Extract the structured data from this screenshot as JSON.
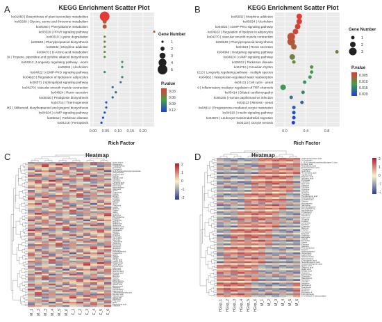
{
  "panels": {
    "A": {
      "letter": "A",
      "title": "KEGG Enrichment Scatter Plot",
      "xlabel": "Rich Factor",
      "size_legend": {
        "title": "Gene Number",
        "values": [
          1,
          2,
          3,
          4,
          5
        ]
      },
      "color_legend": {
        "title": "P.value",
        "ticks": [
          "0.03",
          "0.06",
          "0.09",
          "0.12"
        ],
        "low": "#e53935",
        "mid": "#43a047",
        "high": "#1e3fd6"
      },
      "x_ticks": [
        "0.00",
        "0.05",
        "0.10",
        "0.15",
        "0.20"
      ],
      "chart_data": {
        "type": "scatter",
        "title": "KEGG Enrichment Scatter Plot",
        "xlabel": "Rich Factor",
        "xlim": [
          0.0,
          0.2
        ],
        "points": [
          {
            "pathway": "ko01060 | Biosynthesis of plant secondary metabolites",
            "rich": 0.045,
            "genes": 5,
            "p": 0.004
          },
          {
            "pathway": "ko00260 | Glycine, serine and threonine metabolism",
            "rich": 0.045,
            "genes": 2,
            "p": 0.02
          },
          {
            "pathway": "ko00360 | Phenylalanine metabolism",
            "rich": 0.045,
            "genes": 2,
            "p": 0.02
          },
          {
            "pathway": "ko03320 | PPAR signaling pathway",
            "rich": 0.2,
            "genes": 1,
            "p": 0.03
          },
          {
            "pathway": "ko00310 | Lysine degradation",
            "rich": 0.045,
            "genes": 1,
            "p": 0.04
          },
          {
            "pathway": "ko00940 | Phenylpropanoid biosynthesis",
            "rich": 0.045,
            "genes": 1,
            "p": 0.045
          },
          {
            "pathway": "ko05032 | Morphine addiction",
            "rich": 0.045,
            "genes": 1,
            "p": 0.05
          },
          {
            "pathway": "ko00470 | D-Amino acid metabolism",
            "rich": 0.045,
            "genes": 1,
            "p": 0.055
          },
          {
            "pathway": "ko00960 | Tropane, piperidine and pyridine alkaloid biosynthesis",
            "rich": 0.045,
            "genes": 1,
            "p": 0.06
          },
          {
            "pathway": "ko04212 | Longevity regulating pathway - worm",
            "rich": 0.1,
            "genes": 1,
            "p": 0.065
          },
          {
            "pathway": "ko05034 | Alcoholism",
            "rich": 0.1,
            "genes": 1,
            "p": 0.07
          },
          {
            "pathway": "ko04022 | cGMP-PKG signaling pathway",
            "rich": 0.045,
            "genes": 1,
            "p": 0.075
          },
          {
            "pathway": "ko04923 | Regulation of lipolysis in adipocytes",
            "rich": 0.1,
            "genes": 1,
            "p": 0.08
          },
          {
            "pathway": "ko04071 | Sphingolipid signaling pathway",
            "rich": 0.095,
            "genes": 1,
            "p": 0.085
          },
          {
            "pathway": "ko04270 | Vascular smooth muscle contraction",
            "rich": 0.07,
            "genes": 1,
            "p": 0.09
          },
          {
            "pathway": "ko04924 | Renin secretion",
            "rich": 0.08,
            "genes": 1,
            "p": 0.095
          },
          {
            "pathway": "ko00330 | Prodigiosin biosynthesis",
            "rich": 0.07,
            "genes": 1,
            "p": 0.1
          },
          {
            "pathway": "ko04714 | Thermogenesis",
            "rich": 0.05,
            "genes": 1,
            "p": 0.105
          },
          {
            "pathway": "ko00945 | Stilbenoid, diarylheptanoid and gingerol biosynthesis",
            "rich": 0.05,
            "genes": 1,
            "p": 0.11
          },
          {
            "pathway": "ko04024 | cAMP signaling pathway",
            "rich": 0.045,
            "genes": 1,
            "p": 0.115
          },
          {
            "pathway": "ko05012 | Parkinson disease",
            "rich": 0.04,
            "genes": 1,
            "p": 0.118
          },
          {
            "pathway": "ko04216 | Ferroptosis",
            "rich": 0.035,
            "genes": 1,
            "p": 0.12
          }
        ]
      }
    },
    "B": {
      "letter": "B",
      "title": "KEGG Enrichment Scatter Plot",
      "xlabel": "Rich Factor",
      "size_legend": {
        "title": "Gene Number",
        "values": [
          1,
          2,
          3
        ]
      },
      "color_legend": {
        "title": "P.value",
        "ticks": [
          "0.005",
          "0.010",
          "0.015",
          "0.020"
        ],
        "low": "#e53935",
        "mid": "#43a047",
        "high": "#1e3fd6"
      },
      "x_ticks": [
        "0.0",
        "0.4",
        "0.8"
      ],
      "chart_data": {
        "type": "scatter",
        "title": "KEGG Enrichment Scatter Plot",
        "xlabel": "Rich Factor",
        "xlim": [
          -0.2,
          1.0
        ],
        "points": [
          {
            "pathway": "ko05032 | Morphine addiction",
            "rich": 0.25,
            "genes": 2,
            "p": 0.001
          },
          {
            "pathway": "ko05034 | Alcoholism",
            "rich": 0.25,
            "genes": 2,
            "p": 0.002
          },
          {
            "pathway": "ko04022 | cGMP-PKG signaling pathway",
            "rich": 0.22,
            "genes": 2,
            "p": 0.002
          },
          {
            "pathway": "ko04923 | Regulation of lipolysis in adipocytes",
            "rich": 0.18,
            "genes": 2,
            "p": 0.003
          },
          {
            "pathway": "ko04270 | Vascular smooth muscle contraction",
            "rich": 0.1,
            "genes": 3,
            "p": 0.003
          },
          {
            "pathway": "ko00940 | Phenylpropanoid biosynthesis",
            "rich": 0.1,
            "genes": 3,
            "p": 0.004
          },
          {
            "pathway": "ko04924 | Renin secretion",
            "rich": 0.15,
            "genes": 2,
            "p": 0.005
          },
          {
            "pathway": "ko04340 | Hedgehog signaling pathway",
            "rich": 0.95,
            "genes": 1,
            "p": 0.008
          },
          {
            "pathway": "ko04024 | cAMP signaling pathway",
            "rich": 0.12,
            "genes": 2,
            "p": 0.008
          },
          {
            "pathway": "ko05012 | Parkinson disease",
            "rich": 0.15,
            "genes": 1,
            "p": 0.009
          },
          {
            "pathway": "ko04710 | Circadian rhythm",
            "rich": 0.48,
            "genes": 1,
            "p": 0.01
          },
          {
            "pathway": "ko04213 | Longevity regulating pathway - multiple species",
            "rich": 0.48,
            "genes": 1,
            "p": 0.011
          },
          {
            "pathway": "ko04962 | Vasopressin-regulated water reabsorption",
            "rich": 0.45,
            "genes": 1,
            "p": 0.012
          },
          {
            "pathway": "ko04111 | Cell cycle - yeast",
            "rich": 0.35,
            "genes": 1,
            "p": 0.013
          },
          {
            "pathway": "ko04750 | Inflammatory mediator regulation of TRP channels",
            "rich": -0.05,
            "genes": 2,
            "p": 0.012
          },
          {
            "pathway": "ko05414 | Dilated cardiomyopathy",
            "rich": 0.32,
            "genes": 1,
            "p": 0.014
          },
          {
            "pathway": "ko05165 | Human papillomavirus infection",
            "rich": 0.1,
            "genes": 1,
            "p": 0.016
          },
          {
            "pathway": "ko04113 | Meiosis - yeast",
            "rich": 0.3,
            "genes": 1,
            "p": 0.017
          },
          {
            "pathway": "ko04914 | Progesterone-mediated oocyte maturation",
            "rich": 0.15,
            "genes": 1,
            "p": 0.018
          },
          {
            "pathway": "ko04910 | Insulin signaling pathway",
            "rich": 0.15,
            "genes": 1,
            "p": 0.019
          },
          {
            "pathway": "ko04670 | Leukocyte transendothelial migration",
            "rich": 0.15,
            "genes": 1,
            "p": 0.02
          },
          {
            "pathway": "ko04114 | Oocyte meiosis",
            "rich": 0.14,
            "genes": 1,
            "p": 0.021
          }
        ]
      }
    },
    "C": {
      "letter": "C",
      "title": "Heatmap",
      "scale": {
        "ticks": [
          "2",
          "1",
          "0",
          "-1",
          "-2"
        ],
        "high": "#b2182b",
        "mid": "#f7f2c8",
        "low": "#2b3a8c"
      },
      "chart_data": {
        "type": "heatmap",
        "title": "Heatmap",
        "columns": [
          "M_1",
          "M_2",
          "M_3",
          "M_4",
          "M_5",
          "M_6",
          "C_1",
          "C_2",
          "C_3",
          "C_4",
          "C_5",
          "C_6"
        ],
        "rows": [
          "OxPA-0404?",
          "Pelletierine",
          "Tryptophyl-Glu",
          "Isosorbide",
          "Tocotrienol",
          "N-(4-Hydroxyphenyl)propenamide",
          "Acetylcholine",
          "Linolenic acid",
          "Taurine",
          "Palmitic acid",
          "Citrulline",
          "Coumarin",
          "Cinnamic acid",
          "Nicotinamide",
          "Adenosine",
          "Hypoxanthine",
          "Oleic acid",
          "Uracil",
          "Guanosine",
          "Inosine",
          "Betaine",
          "Choline",
          "Creatine",
          "Carnitine",
          "Glycine",
          "Serine",
          "Threonine",
          "Lysine",
          "Arginine",
          "Proline",
          "Valine",
          "Leucine",
          "Isoleucine",
          "Phenylalanine",
          "Tyrosine",
          "Tryptophan",
          "Histidine",
          "Methionine",
          "Glutamine",
          "Glutamic acid",
          "Aspartic acid",
          "Asparagine",
          "Alanine",
          "Cysteine",
          "Ornithine",
          "Putrescine",
          "Spermidine",
          "Spermine",
          "Cadaverine",
          "Histamine",
          "Dopamine",
          "Serotonin",
          "Melatonin",
          "Tyramine",
          "Phenethylamine",
          "Kynurenine",
          "Indole",
          "Skatole",
          "Vanillin",
          "Ferulic acid",
          "Caffeic acid",
          "Sinapic acid",
          "Lactic acid",
          "Pyruvic acid",
          "Citric acid",
          "Malic acid",
          "Succinic acid",
          "Fumaric acid",
          "Sorbitol",
          "Mannitol",
          "Inositol",
          "Glycerol",
          "Ethanolamine",
          "Sphinganine",
          "Stearic acid",
          "Myristic acid",
          "Sitosterol",
          "Campesterol",
          "Stigmasterol",
          "Chenodeoxycholic acid",
          "Benzoic acid",
          "Salicylic acid",
          "Vitamin B6",
          "Riboflavin",
          "Folic acid",
          "Biotin",
          "Pantothenic acid",
          "Thiamine"
        ],
        "values": [
          [
            -1.2,
            -1.0,
            -0.8,
            -1.1,
            -0.9,
            -1.3,
            1.4,
            1.1,
            0.8,
            1.5,
            1.2,
            0.9
          ],
          [
            0.6,
            0.9,
            1.4,
            0.7,
            1.8,
            1.2,
            -0.8,
            -1.1,
            -0.6,
            -1.3,
            -1.0,
            -0.9
          ],
          [
            -0.5,
            0.4,
            1.6,
            0.2,
            -0.3,
            0.9,
            0.6,
            -0.9,
            -0.4,
            0.1,
            -1.2,
            0.8
          ],
          [
            1.1,
            0.3,
            -0.4,
            0.8,
            1.3,
            0.2,
            -1.4,
            -0.5,
            0.4,
            -0.8,
            -0.6,
            -0.3
          ],
          [
            -1.3,
            -0.7,
            0.2,
            -0.9,
            -1.1,
            -0.4,
            1.0,
            1.3,
            0.7,
            0.9,
            1.5,
            0.6
          ],
          [
            0.2,
            1.4,
            0.9,
            1.6,
            0.4,
            1.1,
            -0.3,
            -1.2,
            -1.0,
            -0.7,
            -0.5,
            -1.6
          ],
          [
            0.9,
            -0.2,
            0.5,
            -0.6,
            0.8,
            1.3,
            -0.7,
            0.4,
            -1.3,
            0.3,
            -0.9,
            -0.4
          ],
          [
            -0.8,
            -1.4,
            -0.3,
            -0.5,
            -1.2,
            -0.9,
            0.5,
            1.6,
            1.1,
            0.8,
            0.4,
            1.2
          ],
          [
            1.5,
            1.2,
            0.6,
            1.0,
            0.3,
            0.7,
            -1.1,
            -0.8,
            -0.2,
            -1.5,
            -0.9,
            -0.6
          ],
          [
            -0.4,
            0.6,
            -1.1,
            0.9,
            -0.7,
            0.1,
            0.8,
            -0.3,
            1.4,
            -0.6,
            0.9,
            -0.2
          ]
        ]
      }
    },
    "D": {
      "letter": "D",
      "title": "Heatmap",
      "scale": {
        "ticks": [
          "2",
          "1",
          "0",
          "-1",
          "-2"
        ],
        "high": "#b2182b",
        "mid": "#f7f2c8",
        "low": "#2b3a8c"
      },
      "chart_data": {
        "type": "heatmap",
        "title": "Heatmap",
        "columns": [
          "HGsp_1",
          "HGsp_2",
          "HGsp_3",
          "HGsp_4",
          "HGsp_5",
          "HGsp_6",
          "M_1",
          "M_2",
          "M_3",
          "M_4",
          "M_5",
          "M_6"
        ],
        "rows": [
          "4-Phosphorylated acid",
          "3-Oxoindole",
          "1-(2,4,5-trimethoxyphenyl)propan-1-one",
          "Linoleic acid",
          "Rosmarinic acid",
          "Protocatechuic acid",
          "Tryptamine",
          "Quinoline",
          "4-Coumaric acid",
          "Vanillic acid",
          "Hippuric acid",
          "Nicotinic acid",
          "Pyridoxal",
          "Xanthine",
          "Uric acid",
          "Allantoin",
          "Thymine",
          "Cytosine",
          "Adenine",
          "Guanine",
          "Citrulline",
          "Pyroglutamic acid",
          "Homocysteine",
          "Cystathionine",
          "Taurine",
          "Hypotaurine",
          "Sarcosine",
          "Dimethylglycine",
          "Trimethylamine",
          "Methylamine",
          "Cholesterol",
          "Lanosterol",
          "Squalene",
          "Farnesol",
          "Geraniol",
          "Linalool",
          "Limonene",
          "Menthol",
          "Camphor",
          "Borneol",
          "Thymol",
          "Carvacrol",
          "Eugenol",
          "Anethole",
          "Estragole",
          "Safrole",
          "Myristicin",
          "Apiole",
          "Elemicin",
          "Asarone",
          "Phenylethanol",
          "Tyrosol",
          "Hydroxytyrosol",
          "Oleuropein",
          "Ligstroside",
          "Verbascoside",
          "Echinacoside",
          "Chlorogenic acid",
          "Neochlorogenic acid",
          "Cryptochlorogenic acid",
          "Quinic acid",
          "Shikimic acid",
          "Gallic acid",
          "Ellagic acid",
          "Catechin",
          "Epicatechin",
          "Quercetin",
          "Kaempferol",
          "Myricetin",
          "Luteolin",
          "Apigenin",
          "Naringenin",
          "Hesperetin",
          "Genistein",
          "Daidzein",
          "Biochanin A",
          "Formononetin",
          "2'-O-Methyl-2'-deoxyuridine"
        ],
        "values": [
          [
            -1.0,
            -1.2,
            -0.8,
            -1.4,
            -0.9,
            -1.1,
            1.3,
            1.5,
            1.1,
            1.6,
            1.2,
            1.4
          ],
          [
            -0.6,
            -0.9,
            -1.3,
            -0.7,
            -1.1,
            -0.8,
            1.1,
            0.9,
            1.4,
            1.0,
            1.3,
            0.8
          ],
          [
            0.3,
            -0.4,
            0.6,
            -0.2,
            0.1,
            0.5,
            -0.3,
            0.2,
            -0.5,
            0.4,
            -0.1,
            -0.6
          ],
          [
            -1.3,
            -1.0,
            -1.1,
            -0.9,
            -1.4,
            -1.2,
            1.0,
            1.2,
            1.5,
            1.1,
            1.3,
            1.4
          ],
          [
            -0.7,
            -1.2,
            -0.5,
            -1.0,
            -0.8,
            -1.3,
            1.4,
            0.8,
            1.2,
            1.5,
            0.9,
            1.1
          ],
          [
            0.8,
            0.5,
            1.0,
            0.6,
            0.9,
            0.4,
            -0.9,
            -0.6,
            -1.1,
            -0.4,
            -0.8,
            -0.7
          ],
          [
            -1.1,
            -0.9,
            -1.4,
            -1.2,
            -0.7,
            -1.0,
            1.2,
            1.4,
            0.9,
            1.3,
            1.6,
            1.0
          ],
          [
            -0.4,
            -0.6,
            -0.3,
            -0.8,
            -0.5,
            -0.2,
            0.7,
            0.5,
            0.9,
            0.4,
            0.6,
            0.8
          ],
          [
            -1.4,
            -1.1,
            -1.2,
            -1.3,
            -1.0,
            -1.5,
            1.1,
            1.3,
            1.2,
            1.4,
            1.0,
            1.5
          ],
          [
            0.2,
            0.4,
            -0.1,
            0.3,
            0.5,
            0.1,
            -0.4,
            -0.2,
            -0.5,
            0.0,
            -0.3,
            -0.6
          ]
        ]
      }
    }
  }
}
